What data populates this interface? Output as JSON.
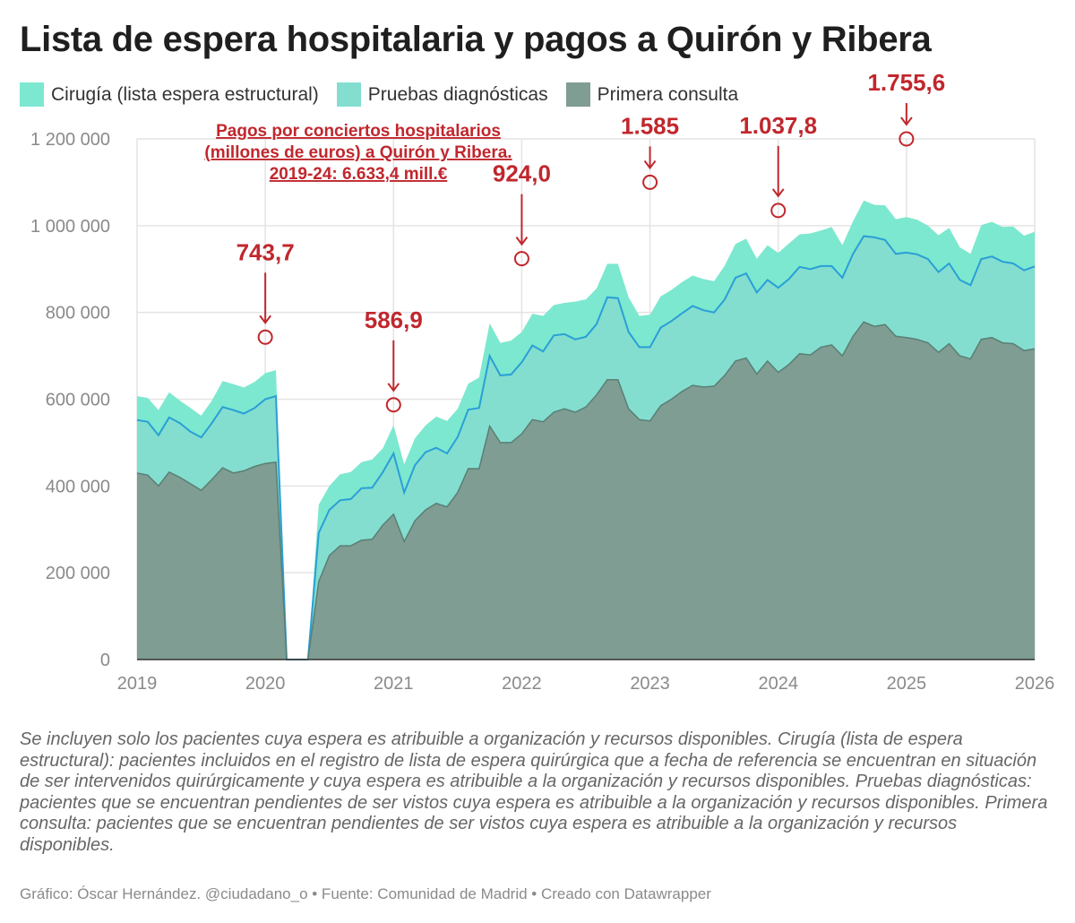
{
  "title": "Lista de espera hospitalaria y pagos a Quirón y Ribera",
  "legend": [
    {
      "label": "Cirugía (lista espera estructural)",
      "color": "#7ce8cf"
    },
    {
      "label": "Pruebas diagnósticas",
      "color": "#83ded0"
    },
    {
      "label": "Primera consulta",
      "color": "#7f9d92"
    }
  ],
  "notes": "Se incluyen solo los pacientes cuya espera es atribuible a organización y recursos disponibles. Cirugía (lista de espera estructural): pacientes incluidos en el registro de lista de espera quirúrgica que a fecha de referencia se encuentran en situación de ser intervenidos quirúrgicamente y cuya espera es atribuible a la organización y recursos disponibles. Pruebas diagnósticas: pacientes que se encuentran pendientes de ser vistos cuya espera es atribuible a la organización y recursos disponibles. Primera consulta: pacientes que se encuentran pendientes de ser vistos cuya espera es atribuible a la organización y recursos disponibles.",
  "credit": "Gráfico: Óscar Hernández. @ciudadano_o • Fuente: Comunidad de Madrid  • Creado con Datawrapper",
  "chart_data": {
    "type": "area",
    "stacked": true,
    "ylim": [
      0,
      1200000
    ],
    "yticks": [
      0,
      200000,
      400000,
      600000,
      800000,
      1000000,
      1200000
    ],
    "ytick_labels": [
      "0",
      "200 000",
      "400 000",
      "600 000",
      "800 000",
      "1 000 000",
      "1 200 000"
    ],
    "xlim": [
      2019,
      2026
    ],
    "xticks": [
      "2019",
      "2020",
      "2021",
      "2022",
      "2023",
      "2024",
      "2025",
      "2026"
    ],
    "grid": true,
    "legend_position": "top-left",
    "colors": {
      "cirugia": "#7ce8cf",
      "pruebas": "#83ded0",
      "primera": "#7f9d92",
      "line": "#2a9fd6",
      "annotation": "#c0272d"
    },
    "x": [
      2019.0,
      2019.083,
      2019.167,
      2019.25,
      2019.333,
      2019.417,
      2019.5,
      2019.583,
      2019.667,
      2019.75,
      2019.833,
      2019.917,
      2020.0,
      2020.083,
      2020.167,
      2020.25,
      2020.333,
      2020.417,
      2020.5,
      2020.583,
      2020.667,
      2020.75,
      2020.833,
      2020.917,
      2021.0,
      2021.083,
      2021.167,
      2021.25,
      2021.333,
      2021.417,
      2021.5,
      2021.583,
      2021.667,
      2021.75,
      2021.833,
      2021.917,
      2022.0,
      2022.083,
      2022.167,
      2022.25,
      2022.333,
      2022.417,
      2022.5,
      2022.583,
      2022.667,
      2022.75,
      2022.833,
      2022.917,
      2023.0,
      2023.083,
      2023.167,
      2023.25,
      2023.333,
      2023.417,
      2023.5,
      2023.583,
      2023.667,
      2023.75,
      2023.833,
      2023.917,
      2024.0,
      2024.083,
      2024.167,
      2024.25,
      2024.333,
      2024.417,
      2024.5,
      2024.583,
      2024.667,
      2024.75,
      2024.833,
      2024.917,
      2025.0,
      2025.083,
      2025.167,
      2025.25,
      2025.333,
      2025.417,
      2025.5,
      2025.583,
      2025.667,
      2025.75,
      2025.833,
      2025.917,
      2026.0
    ],
    "series": [
      {
        "name": "Primera consulta",
        "values": [
          430000,
          425000,
          400000,
          432000,
          420000,
          405000,
          390000,
          415000,
          442000,
          430000,
          435000,
          445000,
          452000,
          455000,
          0,
          0,
          0,
          180000,
          240000,
          262000,
          262000,
          275000,
          277000,
          310000,
          335000,
          272000,
          320000,
          345000,
          360000,
          352000,
          385000,
          440000,
          440000,
          538000,
          500000,
          500000,
          520000,
          553000,
          548000,
          570000,
          578000,
          570000,
          582000,
          610000,
          645000,
          645000,
          578000,
          553000,
          550000,
          585000,
          600000,
          618000,
          632000,
          628000,
          630000,
          655000,
          688000,
          695000,
          658000,
          688000,
          662000,
          680000,
          705000,
          702000,
          720000,
          725000,
          700000,
          745000,
          778000,
          768000,
          772000,
          745000,
          742000,
          738000,
          730000,
          708000,
          728000,
          700000,
          693000,
          738000,
          742000,
          730000,
          728000,
          712000,
          716000
        ]
      },
      {
        "name": "Pruebas diagnósticas",
        "values": [
          122000,
          123000,
          117000,
          126000,
          125000,
          120000,
          122000,
          130000,
          140000,
          145000,
          132000,
          135000,
          148000,
          152000,
          0,
          0,
          0,
          112000,
          105000,
          105000,
          108000,
          120000,
          119000,
          122000,
          140000,
          113000,
          128000,
          133000,
          128000,
          123000,
          128000,
          136000,
          140000,
          162000,
          155000,
          157000,
          165000,
          171000,
          162000,
          177000,
          172000,
          168000,
          162000,
          163000,
          190000,
          188000,
          177000,
          167000,
          170000,
          180000,
          180000,
          180000,
          183000,
          177000,
          170000,
          175000,
          192000,
          195000,
          188000,
          187000,
          195000,
          197000,
          200000,
          198000,
          187000,
          182000,
          180000,
          190000,
          198000,
          205000,
          195000,
          190000,
          196000,
          196000,
          193000,
          185000,
          185000,
          175000,
          170000,
          185000,
          187000,
          187000,
          185000,
          185000,
          190000
        ]
      },
      {
        "name": "Cirugía (lista espera estructural)",
        "values": [
          55000,
          55000,
          58000,
          58000,
          52000,
          55000,
          50000,
          52000,
          60000,
          60000,
          60000,
          60000,
          60000,
          60000,
          0,
          0,
          0,
          65000,
          55000,
          60000,
          62000,
          60000,
          65000,
          55000,
          65000,
          65000,
          62000,
          62000,
          72000,
          75000,
          65000,
          60000,
          70000,
          75000,
          75000,
          78000,
          70000,
          73000,
          82000,
          70000,
          72000,
          87000,
          86000,
          82000,
          77000,
          79000,
          80000,
          72000,
          75000,
          72000,
          72000,
          72000,
          70000,
          72000,
          72000,
          78000,
          78000,
          80000,
          78000,
          80000,
          80000,
          82000,
          75000,
          82000,
          82000,
          90000,
          75000,
          75000,
          82000,
          75000,
          80000,
          80000,
          82000,
          80000,
          77000,
          85000,
          82000,
          75000,
          72000,
          78000,
          80000,
          80000,
          85000,
          80000,
          80000
        ]
      }
    ],
    "annotations": [
      {
        "x": 2020.0,
        "y": 743000,
        "label": "743,7"
      },
      {
        "x": 2021.0,
        "y": 587000,
        "label": "586,9"
      },
      {
        "x": 2022.0,
        "y": 924000,
        "label": "924,0"
      },
      {
        "x": 2023.0,
        "y": 1100000,
        "label": "1.585"
      },
      {
        "x": 2024.0,
        "y": 1035000,
        "label": "1.037,8"
      },
      {
        "x": 2025.0,
        "y": 1200000,
        "label": "1.755,6"
      }
    ],
    "note_lines": [
      "Pagos por conciertos hospitalarios",
      "(millones de euros) a Quirón y Ribera.",
      "2019-24: 6.633,4 mill.€"
    ]
  }
}
